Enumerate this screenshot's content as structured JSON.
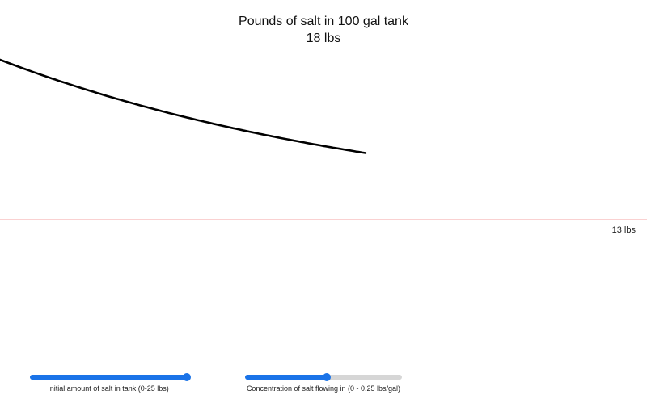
{
  "header": {
    "title": "Pounds of salt in 100 gal tank",
    "current_amount": "18 lbs"
  },
  "equilibrium": {
    "label": "13 lbs",
    "value_lbs": 13,
    "line_color": "#f4a3a3"
  },
  "curve": {
    "color": "#000000",
    "start_lbs": 25,
    "current_lbs": 18,
    "progress": 0.565
  },
  "controls": {
    "initial_amount": {
      "label": "Initial amount of salt in tank (0-25 lbs)",
      "min": 0,
      "max": 25,
      "value": 25
    },
    "concentration": {
      "label": "Concentration of salt flowing in (0 - 0.25 lbs/gal)",
      "min": 0,
      "max": 0.25,
      "value": 0.13
    },
    "accent_color": "#1a73e8"
  }
}
